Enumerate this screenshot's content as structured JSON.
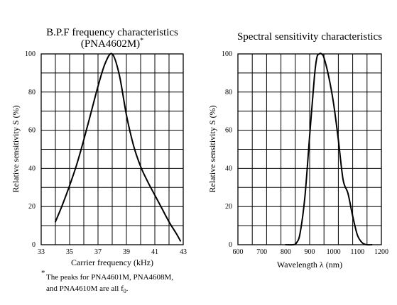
{
  "chart_data": [
    {
      "type": "line",
      "title": "B.P.F frequency characteristics",
      "subtitle": "(PNA4602M)",
      "subtitle_mark": "*",
      "xlabel": "Carrier  frequency  (kHz)",
      "ylabel": "Relative sensitivity   S  (%)",
      "xlim": [
        33,
        43
      ],
      "ylim": [
        0,
        100
      ],
      "x_ticks": [
        33,
        35,
        37,
        39,
        41,
        43
      ],
      "x_tick_labels": [
        "33",
        "35",
        "37",
        "39",
        "41",
        "43"
      ],
      "y_ticks": [
        0,
        20,
        40,
        60,
        80,
        100
      ],
      "y_tick_labels": [
        "0",
        "20",
        "40",
        "60",
        "80",
        "100"
      ],
      "grid": true,
      "series": [
        {
          "x": [
            34.0,
            34.5,
            35.0,
            35.5,
            36.0,
            36.5,
            37.0,
            37.5,
            38.0,
            38.5,
            39.0,
            39.5,
            40.0,
            40.5,
            41.0,
            41.5,
            42.0,
            42.5,
            42.8
          ],
          "values": [
            12,
            21,
            31,
            42,
            55,
            69,
            83,
            95,
            100,
            89,
            68,
            52,
            41,
            33,
            26,
            19,
            12,
            6,
            2
          ]
        }
      ]
    },
    {
      "type": "line",
      "title": "Spectral sensitivity characteristics",
      "xlabel": "Wavelength    λ  (nm)",
      "ylabel": "Relative sensitivity   S  (%)",
      "xlim": [
        600,
        1200
      ],
      "ylim": [
        0,
        100
      ],
      "x_ticks": [
        600,
        700,
        800,
        900,
        1000,
        1100,
        1200
      ],
      "x_tick_labels": [
        "600",
        "700",
        "800",
        "900",
        "1000",
        "1100",
        "1200"
      ],
      "y_ticks": [
        0,
        20,
        40,
        60,
        80,
        100
      ],
      "y_tick_labels": [
        "0",
        "20",
        "40",
        "60",
        "80",
        "100"
      ],
      "grid": true,
      "series": [
        {
          "x": [
            800,
            830,
            845,
            860,
            880,
            900,
            920,
            930,
            940,
            950,
            960,
            980,
            1000,
            1020,
            1040,
            1060,
            1080,
            1100,
            1120,
            1140,
            1160
          ],
          "values": [
            0,
            0,
            1,
            6,
            25,
            57,
            88,
            98,
            100,
            100,
            98,
            88,
            74,
            55,
            34,
            27,
            15,
            5,
            1,
            0,
            0
          ]
        }
      ]
    }
  ],
  "footnote": {
    "mark": "*",
    "line1": "The peaks for PNA4601M, PNA4608M,",
    "line2_prefix": "and PNA4610M are all f",
    "line2_sub": "0",
    "line2_suffix": "."
  }
}
